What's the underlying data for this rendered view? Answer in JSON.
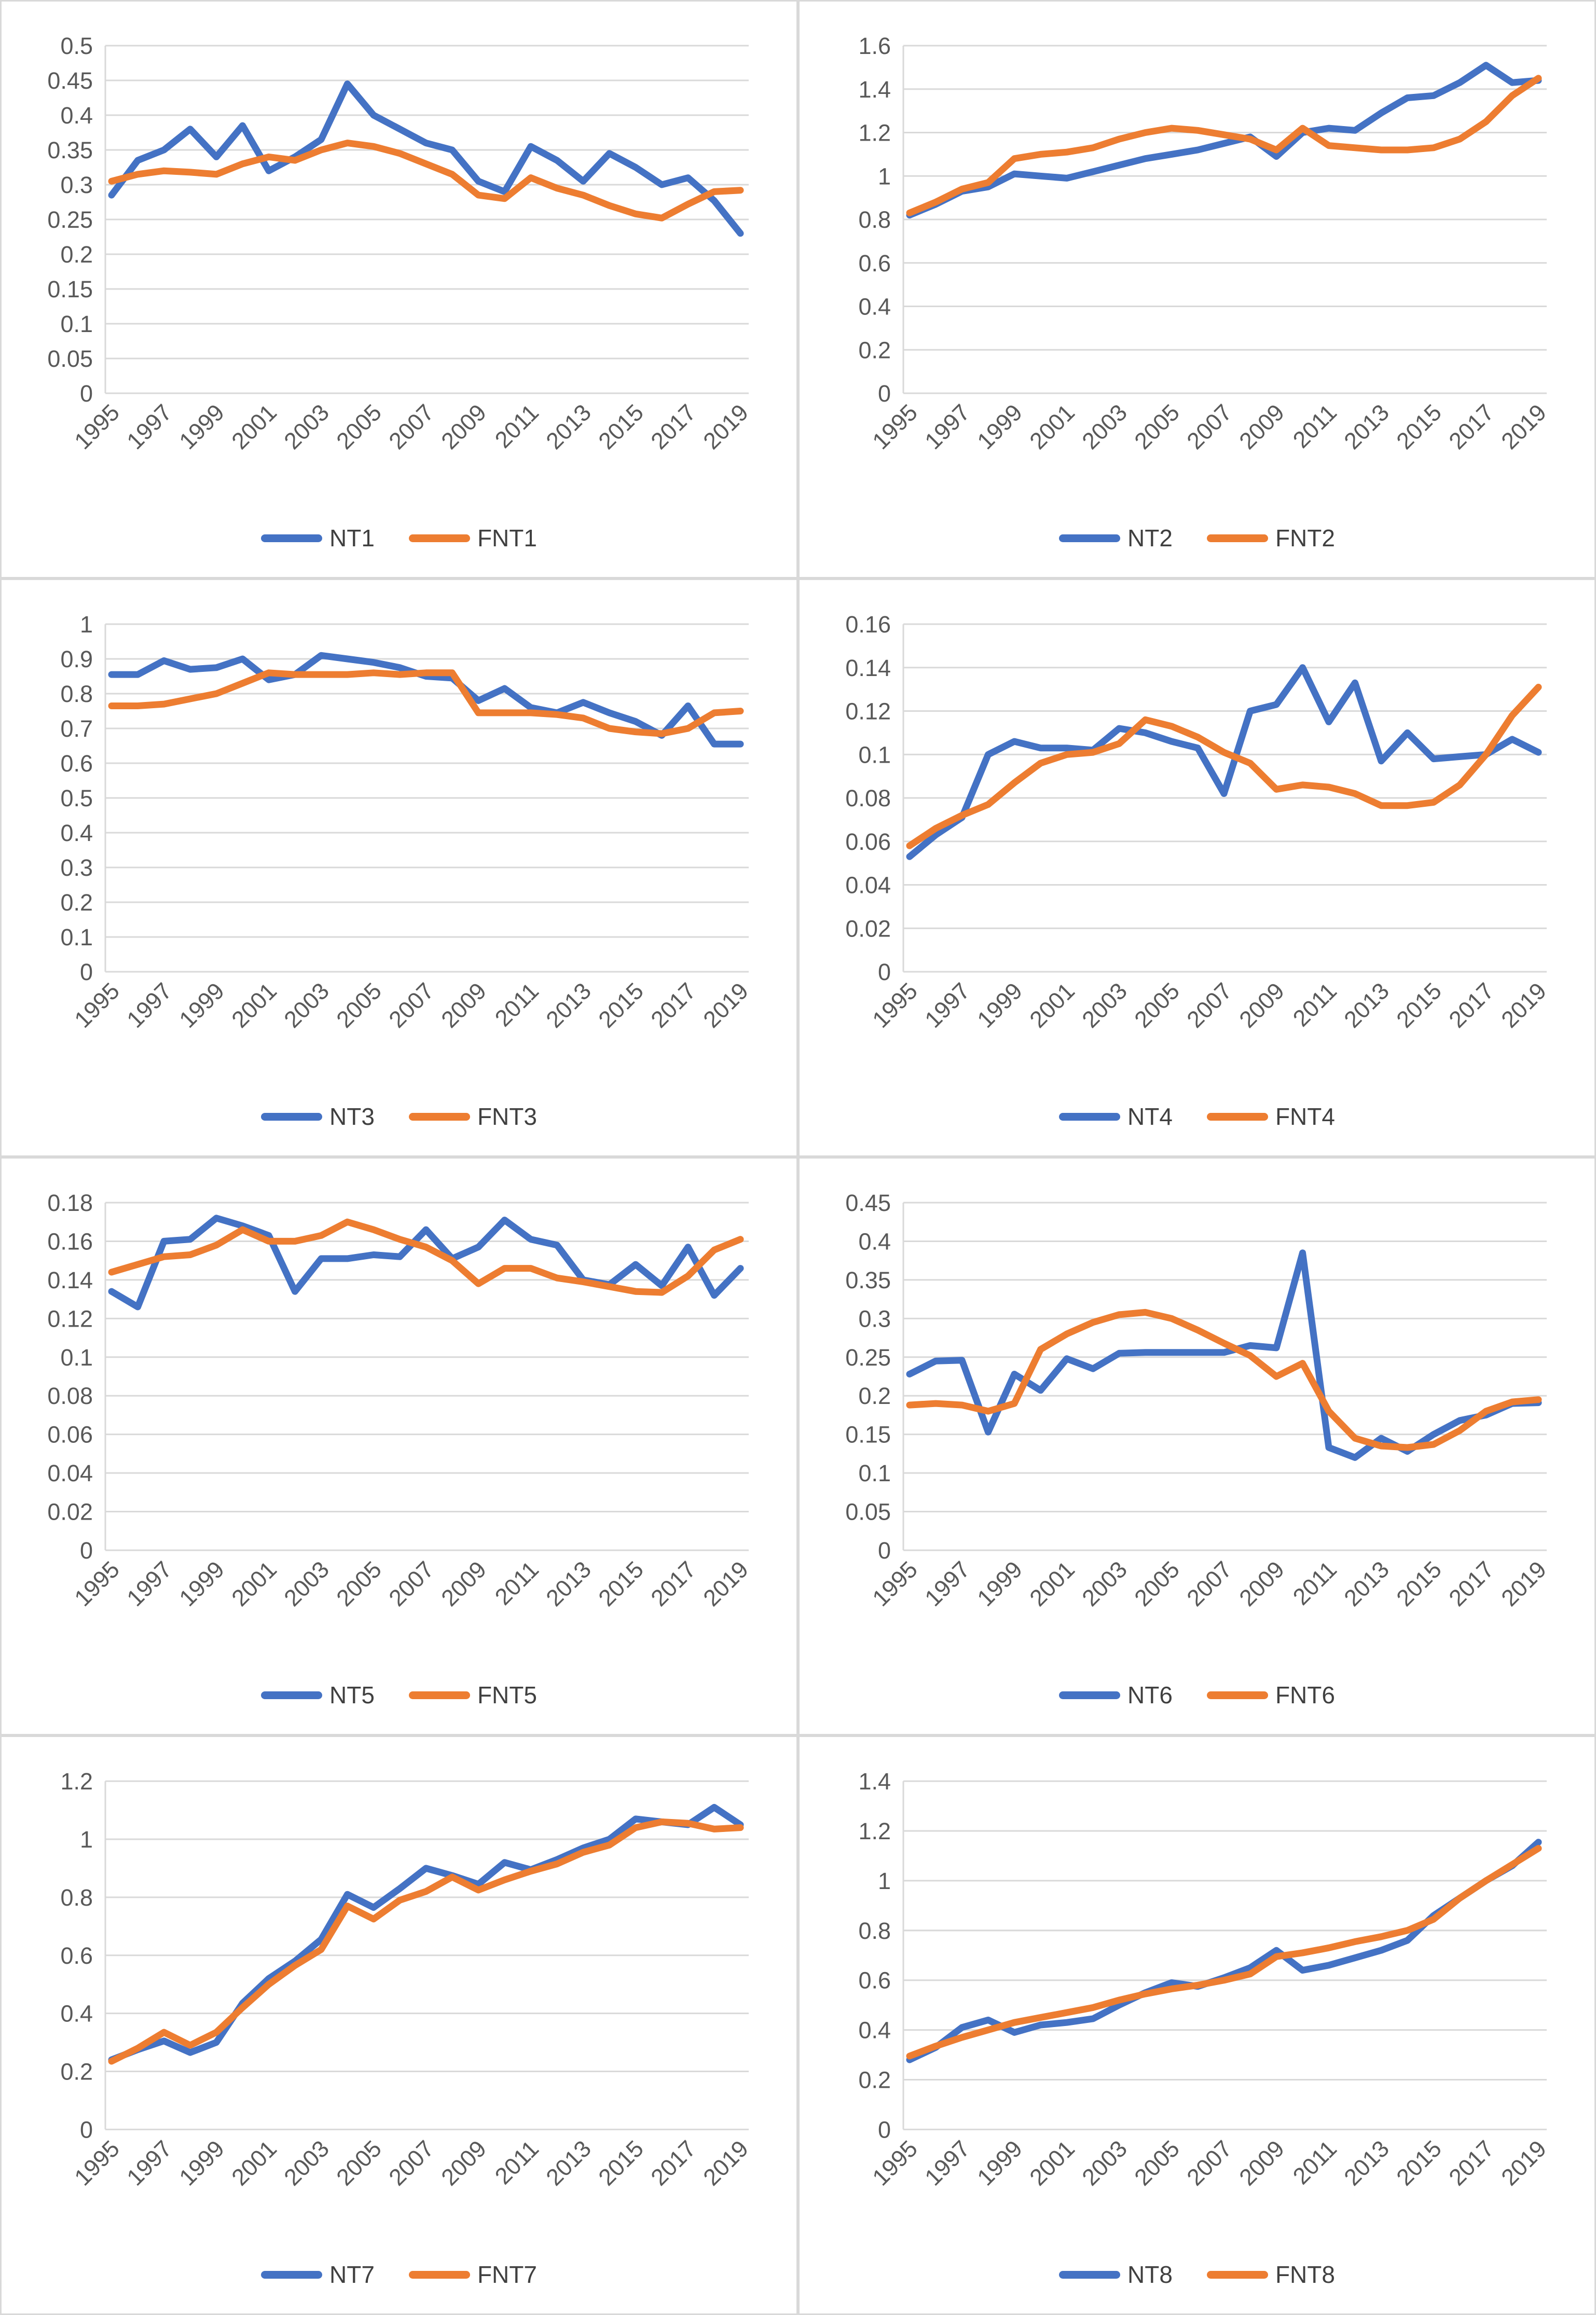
{
  "page": {
    "background_color": "#ffffff",
    "panel_border_color": "#d9d9d9",
    "gridline_color": "#d9d9d9",
    "axis_text_color": "#595959",
    "legend_text_color": "#404040",
    "series_blue_color": "#4472C4",
    "series_orange_color": "#ED7D31"
  },
  "chart_data": [
    {
      "type": "line",
      "title": "",
      "xlabel": "",
      "ylabel": "",
      "grid": true,
      "legend_position": "bottom",
      "ylim": [
        0,
        0.5
      ],
      "y_tick_labels": [
        "0",
        "0.05",
        "0.1",
        "0.15",
        "0.2",
        "0.25",
        "0.3",
        "0.35",
        "0.4",
        "0.45",
        "0.5"
      ],
      "x": [
        1995,
        1996,
        1997,
        1998,
        1999,
        2000,
        2001,
        2002,
        2003,
        2004,
        2005,
        2006,
        2007,
        2008,
        2009,
        2010,
        2011,
        2012,
        2013,
        2014,
        2015,
        2016,
        2017,
        2018,
        2019
      ],
      "x_tick_labels": [
        "1995",
        "1997",
        "1999",
        "2001",
        "2003",
        "2005",
        "2007",
        "2009",
        "2011",
        "2013",
        "2015",
        "2017",
        "2019"
      ],
      "series": [
        {
          "name": "NT1",
          "color": "#4472C4",
          "values": [
            0.285,
            0.335,
            0.35,
            0.38,
            0.34,
            0.385,
            0.32,
            0.34,
            0.365,
            0.445,
            0.4,
            0.38,
            0.36,
            0.35,
            0.305,
            0.29,
            0.355,
            0.335,
            0.305,
            0.345,
            0.325,
            0.3,
            0.31,
            0.277,
            0.23
          ]
        },
        {
          "name": "FNT1",
          "color": "#ED7D31",
          "values": [
            0.305,
            0.315,
            0.32,
            0.318,
            0.315,
            0.33,
            0.34,
            0.335,
            0.35,
            0.36,
            0.355,
            0.345,
            0.33,
            0.315,
            0.285,
            0.28,
            0.31,
            0.295,
            0.285,
            0.27,
            0.258,
            0.252,
            0.272,
            0.29,
            0.292
          ]
        }
      ]
    },
    {
      "type": "line",
      "title": "",
      "xlabel": "",
      "ylabel": "",
      "grid": true,
      "legend_position": "bottom",
      "ylim": [
        0,
        1.6
      ],
      "y_tick_labels": [
        "0",
        "0.2",
        "0.4",
        "0.6",
        "0.8",
        "1",
        "1.2",
        "1.4",
        "1.6"
      ],
      "x": [
        1995,
        1996,
        1997,
        1998,
        1999,
        2000,
        2001,
        2002,
        2003,
        2004,
        2005,
        2006,
        2007,
        2008,
        2009,
        2010,
        2011,
        2012,
        2013,
        2014,
        2015,
        2016,
        2017,
        2018,
        2019
      ],
      "x_tick_labels": [
        "1995",
        "1997",
        "1999",
        "2001",
        "2003",
        "2005",
        "2007",
        "2009",
        "2011",
        "2013",
        "2015",
        "2017",
        "2019"
      ],
      "series": [
        {
          "name": "NT2",
          "color": "#4472C4",
          "values": [
            0.82,
            0.87,
            0.93,
            0.95,
            1.01,
            1.0,
            0.99,
            1.02,
            1.05,
            1.08,
            1.1,
            1.12,
            1.15,
            1.18,
            1.09,
            1.2,
            1.22,
            1.21,
            1.29,
            1.36,
            1.37,
            1.43,
            1.51,
            1.43,
            1.44
          ]
        },
        {
          "name": "FNT2",
          "color": "#ED7D31",
          "values": [
            0.83,
            0.88,
            0.94,
            0.97,
            1.08,
            1.1,
            1.11,
            1.13,
            1.17,
            1.2,
            1.22,
            1.21,
            1.19,
            1.17,
            1.12,
            1.22,
            1.14,
            1.13,
            1.12,
            1.12,
            1.13,
            1.17,
            1.25,
            1.37,
            1.45
          ]
        }
      ]
    },
    {
      "type": "line",
      "title": "",
      "xlabel": "",
      "ylabel": "",
      "grid": true,
      "legend_position": "bottom",
      "ylim": [
        0,
        1
      ],
      "y_tick_labels": [
        "0",
        "0.1",
        "0.2",
        "0.3",
        "0.4",
        "0.5",
        "0.6",
        "0.7",
        "0.8",
        "0.9",
        "1"
      ],
      "x": [
        1995,
        1996,
        1997,
        1998,
        1999,
        2000,
        2001,
        2002,
        2003,
        2004,
        2005,
        2006,
        2007,
        2008,
        2009,
        2010,
        2011,
        2012,
        2013,
        2014,
        2015,
        2016,
        2017,
        2018,
        2019
      ],
      "x_tick_labels": [
        "1995",
        "1997",
        "1999",
        "2001",
        "2003",
        "2005",
        "2007",
        "2009",
        "2011",
        "2013",
        "2015",
        "2017",
        "2019"
      ],
      "series": [
        {
          "name": "NT3",
          "color": "#4472C4",
          "values": [
            0.855,
            0.855,
            0.895,
            0.87,
            0.875,
            0.9,
            0.84,
            0.855,
            0.91,
            0.9,
            0.89,
            0.875,
            0.85,
            0.845,
            0.78,
            0.815,
            0.76,
            0.745,
            0.775,
            0.745,
            0.72,
            0.68,
            0.765,
            0.655,
            0.655
          ]
        },
        {
          "name": "FNT3",
          "color": "#ED7D31",
          "values": [
            0.765,
            0.765,
            0.77,
            0.785,
            0.8,
            0.83,
            0.86,
            0.855,
            0.855,
            0.855,
            0.86,
            0.855,
            0.86,
            0.86,
            0.745,
            0.745,
            0.745,
            0.74,
            0.73,
            0.7,
            0.69,
            0.685,
            0.7,
            0.745,
            0.75
          ]
        }
      ]
    },
    {
      "type": "line",
      "title": "",
      "xlabel": "",
      "ylabel": "",
      "grid": true,
      "legend_position": "bottom",
      "ylim": [
        0,
        0.16
      ],
      "y_tick_labels": [
        "0",
        "0.02",
        "0.04",
        "0.06",
        "0.08",
        "0.1",
        "0.12",
        "0.14",
        "0.16"
      ],
      "x": [
        1995,
        1996,
        1997,
        1998,
        1999,
        2000,
        2001,
        2002,
        2003,
        2004,
        2005,
        2006,
        2007,
        2008,
        2009,
        2010,
        2011,
        2012,
        2013,
        2014,
        2015,
        2016,
        2017,
        2018,
        2019
      ],
      "x_tick_labels": [
        "1995",
        "1997",
        "1999",
        "2001",
        "2003",
        "2005",
        "2007",
        "2009",
        "2011",
        "2013",
        "2015",
        "2017",
        "2019"
      ],
      "series": [
        {
          "name": "NT4",
          "color": "#4472C4",
          "values": [
            0.053,
            0.063,
            0.071,
            0.1,
            0.106,
            0.103,
            0.103,
            0.102,
            0.112,
            0.11,
            0.106,
            0.103,
            0.082,
            0.12,
            0.123,
            0.14,
            0.115,
            0.133,
            0.097,
            0.11,
            0.098,
            0.099,
            0.1,
            0.107,
            0.101
          ]
        },
        {
          "name": "FNT4",
          "color": "#ED7D31",
          "values": [
            0.058,
            0.066,
            0.072,
            0.077,
            0.087,
            0.096,
            0.1,
            0.101,
            0.105,
            0.116,
            0.113,
            0.108,
            0.101,
            0.096,
            0.084,
            0.086,
            0.085,
            0.082,
            0.0765,
            0.0765,
            0.078,
            0.086,
            0.1,
            0.118,
            0.131
          ]
        }
      ]
    },
    {
      "type": "line",
      "title": "",
      "xlabel": "",
      "ylabel": "",
      "grid": true,
      "legend_position": "bottom",
      "ylim": [
        0,
        0.18
      ],
      "y_tick_labels": [
        "0",
        "0.02",
        "0.04",
        "0.06",
        "0.08",
        "0.1",
        "0.12",
        "0.14",
        "0.16",
        "0.18"
      ],
      "x": [
        1995,
        1996,
        1997,
        1998,
        1999,
        2000,
        2001,
        2002,
        2003,
        2004,
        2005,
        2006,
        2007,
        2008,
        2009,
        2010,
        2011,
        2012,
        2013,
        2014,
        2015,
        2016,
        2017,
        2018,
        2019
      ],
      "x_tick_labels": [
        "1995",
        "1997",
        "1999",
        "2001",
        "2003",
        "2005",
        "2007",
        "2009",
        "2011",
        "2013",
        "2015",
        "2017",
        "2019"
      ],
      "series": [
        {
          "name": "NT5",
          "color": "#4472C4",
          "values": [
            0.134,
            0.126,
            0.16,
            0.161,
            0.172,
            0.168,
            0.163,
            0.134,
            0.151,
            0.151,
            0.153,
            0.152,
            0.166,
            0.151,
            0.157,
            0.171,
            0.161,
            0.158,
            0.14,
            0.1375,
            0.148,
            0.137,
            0.157,
            0.132,
            0.146
          ]
        },
        {
          "name": "FNT5",
          "color": "#ED7D31",
          "values": [
            0.144,
            0.148,
            0.152,
            0.153,
            0.158,
            0.166,
            0.16,
            0.16,
            0.163,
            0.17,
            0.166,
            0.161,
            0.157,
            0.15,
            0.138,
            0.146,
            0.146,
            0.141,
            0.139,
            0.1365,
            0.134,
            0.1335,
            0.142,
            0.1555,
            0.161
          ]
        }
      ]
    },
    {
      "type": "line",
      "title": "",
      "xlabel": "",
      "ylabel": "",
      "grid": true,
      "legend_position": "bottom",
      "ylim": [
        0,
        0.45
      ],
      "y_tick_labels": [
        "0",
        "0.05",
        "0.1",
        "0.15",
        "0.2",
        "0.25",
        "0.3",
        "0.35",
        "0.4",
        "0.45"
      ],
      "x": [
        1995,
        1996,
        1997,
        1998,
        1999,
        2000,
        2001,
        2002,
        2003,
        2004,
        2005,
        2006,
        2007,
        2008,
        2009,
        2010,
        2011,
        2012,
        2013,
        2014,
        2015,
        2016,
        2017,
        2018,
        2019
      ],
      "x_tick_labels": [
        "1995",
        "1997",
        "1999",
        "2001",
        "2003",
        "2005",
        "2007",
        "2009",
        "2011",
        "2013",
        "2015",
        "2017",
        "2019"
      ],
      "series": [
        {
          "name": "NT6",
          "color": "#4472C4",
          "values": [
            0.228,
            0.245,
            0.246,
            0.153,
            0.228,
            0.207,
            0.248,
            0.235,
            0.255,
            0.256,
            0.256,
            0.256,
            0.256,
            0.265,
            0.262,
            0.385,
            0.133,
            0.12,
            0.145,
            0.128,
            0.15,
            0.168,
            0.175,
            0.19,
            0.191
          ]
        },
        {
          "name": "FNT6",
          "color": "#ED7D31",
          "values": [
            0.188,
            0.19,
            0.188,
            0.18,
            0.19,
            0.26,
            0.28,
            0.295,
            0.305,
            0.308,
            0.3,
            0.285,
            0.268,
            0.252,
            0.225,
            0.242,
            0.18,
            0.145,
            0.135,
            0.133,
            0.137,
            0.155,
            0.18,
            0.192,
            0.195
          ]
        }
      ]
    },
    {
      "type": "line",
      "title": "",
      "xlabel": "",
      "ylabel": "",
      "grid": true,
      "legend_position": "bottom",
      "ylim": [
        0,
        1.2
      ],
      "y_tick_labels": [
        "0",
        "0.2",
        "0.4",
        "0.6",
        "0.8",
        "1",
        "1.2"
      ],
      "x": [
        1995,
        1996,
        1997,
        1998,
        1999,
        2000,
        2001,
        2002,
        2003,
        2004,
        2005,
        2006,
        2007,
        2008,
        2009,
        2010,
        2011,
        2012,
        2013,
        2014,
        2015,
        2016,
        2017,
        2018,
        2019
      ],
      "x_tick_labels": [
        "1995",
        "1997",
        "1999",
        "2001",
        "2003",
        "2005",
        "2007",
        "2009",
        "2011",
        "2013",
        "2015",
        "2017",
        "2019"
      ],
      "series": [
        {
          "name": "NT7",
          "color": "#4472C4",
          "values": [
            0.24,
            0.275,
            0.305,
            0.265,
            0.3,
            0.435,
            0.52,
            0.58,
            0.655,
            0.81,
            0.765,
            0.83,
            0.9,
            0.875,
            0.845,
            0.92,
            0.895,
            0.93,
            0.97,
            1.0,
            1.07,
            1.06,
            1.05,
            1.11,
            1.05
          ]
        },
        {
          "name": "FNT7",
          "color": "#ED7D31",
          "values": [
            0.235,
            0.28,
            0.335,
            0.29,
            0.335,
            0.42,
            0.5,
            0.565,
            0.62,
            0.77,
            0.725,
            0.79,
            0.82,
            0.87,
            0.825,
            0.86,
            0.89,
            0.915,
            0.955,
            0.98,
            1.04,
            1.06,
            1.055,
            1.035,
            1.04
          ]
        }
      ]
    },
    {
      "type": "line",
      "title": "",
      "xlabel": "",
      "ylabel": "",
      "grid": true,
      "legend_position": "bottom",
      "ylim": [
        0,
        1.4
      ],
      "y_tick_labels": [
        "0",
        "0.2",
        "0.4",
        "0.6",
        "0.8",
        "1",
        "1.2",
        "1.4"
      ],
      "x": [
        1995,
        1996,
        1997,
        1998,
        1999,
        2000,
        2001,
        2002,
        2003,
        2004,
        2005,
        2006,
        2007,
        2008,
        2009,
        2010,
        2011,
        2012,
        2013,
        2014,
        2015,
        2016,
        2017,
        2018,
        2019
      ],
      "x_tick_labels": [
        "1995",
        "1997",
        "1999",
        "2001",
        "2003",
        "2005",
        "2007",
        "2009",
        "2011",
        "2013",
        "2015",
        "2017",
        "2019"
      ],
      "series": [
        {
          "name": "NT8",
          "color": "#4472C4",
          "values": [
            0.28,
            0.33,
            0.41,
            0.44,
            0.39,
            0.42,
            0.43,
            0.445,
            0.5,
            0.55,
            0.59,
            0.575,
            0.61,
            0.65,
            0.72,
            0.64,
            0.66,
            0.69,
            0.72,
            0.76,
            0.86,
            0.93,
            1.0,
            1.06,
            1.155
          ]
        },
        {
          "name": "FNT8",
          "color": "#ED7D31",
          "values": [
            0.295,
            0.335,
            0.37,
            0.4,
            0.43,
            0.45,
            0.47,
            0.49,
            0.52,
            0.545,
            0.565,
            0.58,
            0.6,
            0.625,
            0.695,
            0.71,
            0.73,
            0.755,
            0.775,
            0.8,
            0.845,
            0.93,
            1.0,
            1.065,
            1.13
          ]
        }
      ]
    }
  ]
}
